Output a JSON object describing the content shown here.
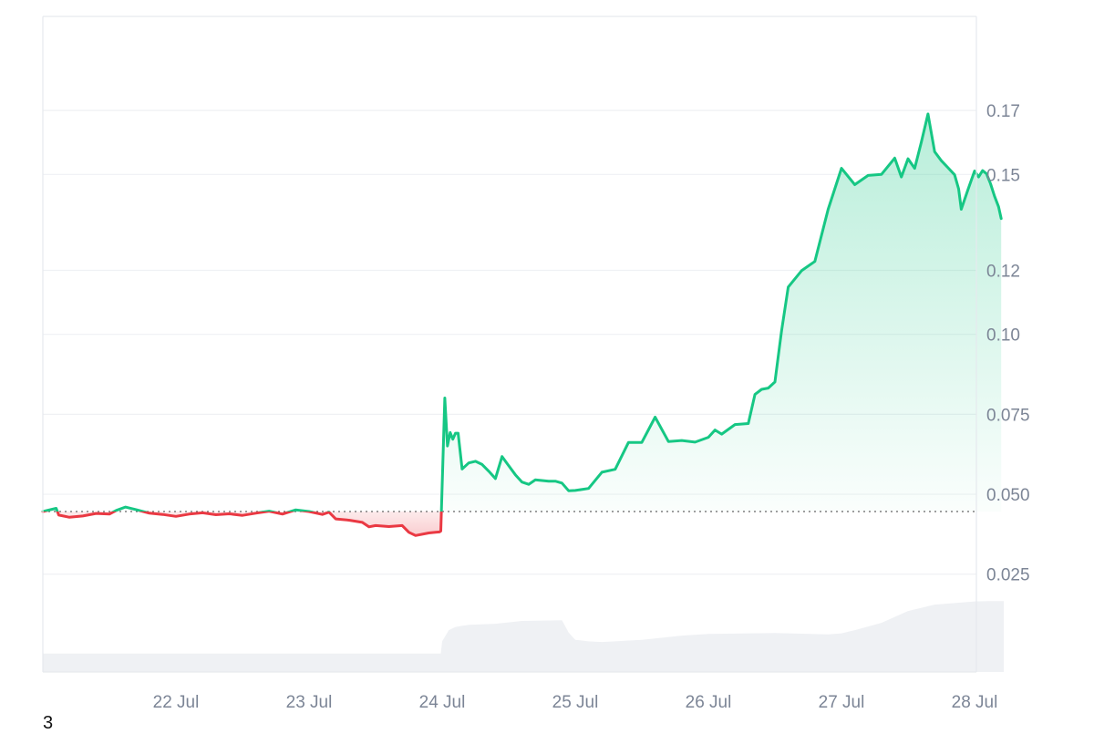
{
  "footnote": "3",
  "chart_data": {
    "type": "area",
    "baseline": 0.0446,
    "ylim": [
      -0.0082,
      0.1971
    ],
    "y_ticks": [
      0.025,
      0.05,
      0.075,
      0.1,
      0.12,
      0.15,
      0.17
    ],
    "y_tick_labels": [
      "0.025",
      "0.050",
      "0.075",
      "0.10",
      "0.12",
      "0.15",
      "0.17"
    ],
    "x_ticks": [
      1,
      2,
      3,
      4,
      5,
      6,
      7
    ],
    "x_tick_labels": [
      "22 Jul",
      "23 Jul",
      "24 Jul",
      "25 Jul",
      "26 Jul",
      "27 Jul",
      "28 Jul"
    ],
    "xlim": [
      0,
      7.22
    ],
    "grid": true,
    "colors": {
      "up": "#16c784",
      "down": "#ea3943",
      "up_fill": "#16c784",
      "down_fill": "#ea3943",
      "volume": "#eff1f4",
      "grid": "#eff1f4",
      "axis": "#e6e9ee",
      "baseline": "#666666"
    },
    "price": {
      "x": [
        0,
        0.1,
        0.12,
        0.2,
        0.3,
        0.4,
        0.5,
        0.55,
        0.62,
        0.7,
        0.8,
        0.9,
        1.0,
        1.1,
        1.2,
        1.3,
        1.4,
        1.5,
        1.6,
        1.7,
        1.8,
        1.9,
        2.0,
        2.1,
        2.15,
        2.2,
        2.3,
        2.4,
        2.45,
        2.5,
        2.6,
        2.7,
        2.75,
        2.8,
        2.9,
        2.95,
        2.98,
        2.99,
        3.02,
        3.04,
        3.06,
        3.08,
        3.1,
        3.12,
        3.15,
        3.2,
        3.25,
        3.3,
        3.35,
        3.4,
        3.45,
        3.5,
        3.55,
        3.6,
        3.65,
        3.7,
        3.75,
        3.8,
        3.85,
        3.9,
        3.95,
        4.0,
        4.1,
        4.2,
        4.3,
        4.4,
        4.5,
        4.6,
        4.7,
        4.8,
        4.9,
        5.0,
        5.05,
        5.1,
        5.2,
        5.3,
        5.35,
        5.4,
        5.45,
        5.5,
        5.55,
        5.6,
        5.7,
        5.8,
        5.9,
        6.0,
        6.1,
        6.2,
        6.3,
        6.4,
        6.45,
        6.5,
        6.55,
        6.6,
        6.65,
        6.7,
        6.75,
        6.8,
        6.85,
        6.88,
        6.9,
        6.95,
        7.0,
        7.03,
        7.06,
        7.09,
        7.12,
        7.15,
        7.18,
        7.2
      ],
      "y": [
        0.0446,
        0.0456,
        0.0435,
        0.0428,
        0.0432,
        0.044,
        0.0438,
        0.0449,
        0.046,
        0.0452,
        0.0441,
        0.0437,
        0.0431,
        0.0438,
        0.0442,
        0.0436,
        0.0439,
        0.0434,
        0.0441,
        0.0447,
        0.0438,
        0.0451,
        0.0446,
        0.0437,
        0.0444,
        0.0423,
        0.0419,
        0.0412,
        0.0398,
        0.0402,
        0.0399,
        0.0402,
        0.0381,
        0.0371,
        0.0379,
        0.0381,
        0.0382,
        0.0385,
        0.0801,
        0.0651,
        0.0693,
        0.0672,
        0.0691,
        0.0691,
        0.0579,
        0.0598,
        0.0603,
        0.0593,
        0.0572,
        0.0549,
        0.0618,
        0.0589,
        0.0561,
        0.0538,
        0.0531,
        0.0545,
        0.0543,
        0.0541,
        0.0541,
        0.0535,
        0.0511,
        0.0512,
        0.0518,
        0.0569,
        0.0578,
        0.0662,
        0.0662,
        0.0741,
        0.0665,
        0.0668,
        0.0663,
        0.0678,
        0.0701,
        0.0688,
        0.0718,
        0.0721,
        0.0812,
        0.0828,
        0.0832,
        0.0851,
        0.1011,
        0.1148,
        0.1199,
        0.1228,
        0.1391,
        0.1519,
        0.1468,
        0.1497,
        0.15,
        0.1551,
        0.1492,
        0.1549,
        0.1519,
        0.1601,
        0.1689,
        0.1571,
        0.1543,
        0.1521,
        0.1499,
        0.1455,
        0.1391,
        0.1452,
        0.1511,
        0.1492,
        0.1512,
        0.1502,
        0.1471,
        0.1432,
        0.1399,
        0.1362
      ]
    },
    "volume": {
      "x": [
        0,
        2.99,
        3.0,
        3.05,
        3.1,
        3.2,
        3.4,
        3.6,
        3.9,
        3.95,
        4.0,
        4.1,
        4.2,
        4.5,
        4.8,
        5.0,
        5.5,
        5.9,
        6.0,
        6.1,
        6.3,
        6.5,
        6.7,
        7.0,
        7.1,
        7.22
      ],
      "y": [
        0.0002,
        0.0002,
        0.004,
        0.0075,
        0.0085,
        0.0092,
        0.0095,
        0.0104,
        0.0106,
        0.0068,
        0.0045,
        0.004,
        0.0038,
        0.0045,
        0.0058,
        0.0063,
        0.0066,
        0.0062,
        0.0065,
        0.0075,
        0.0098,
        0.0135,
        0.0155,
        0.0165,
        0.0166,
        0.0166
      ]
    }
  }
}
